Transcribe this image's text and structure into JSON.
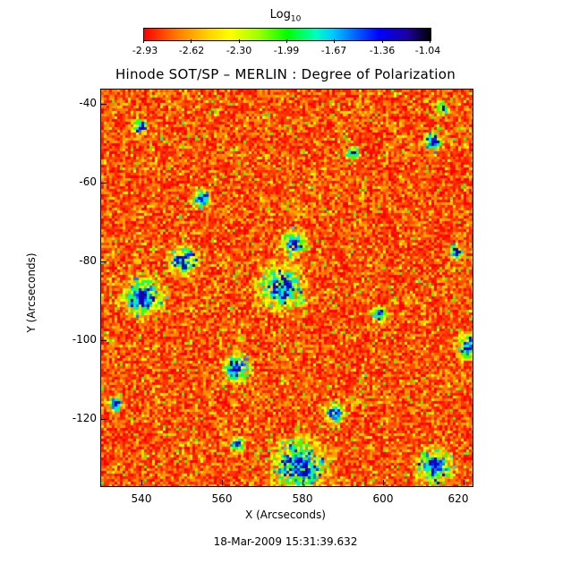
{
  "colorbar": {
    "title": "Log",
    "title_sub": "10",
    "ticks": [
      "-2.93",
      "-2.62",
      "-2.30",
      "-1.99",
      "-1.67",
      "-1.36",
      "-1.04"
    ]
  },
  "title": "Hinode SOT/SP – MERLIN : Degree of Polarization",
  "axes": {
    "xlabel": "X (Arcseconds)",
    "ylabel": "Y (Arcseconds)",
    "xticks": [
      "540",
      "560",
      "580",
      "600",
      "620"
    ],
    "yticks": [
      "-40",
      "-60",
      "-80",
      "-100",
      "-120"
    ]
  },
  "timestamp": "18-Mar-2009 15:31:39.632"
}
